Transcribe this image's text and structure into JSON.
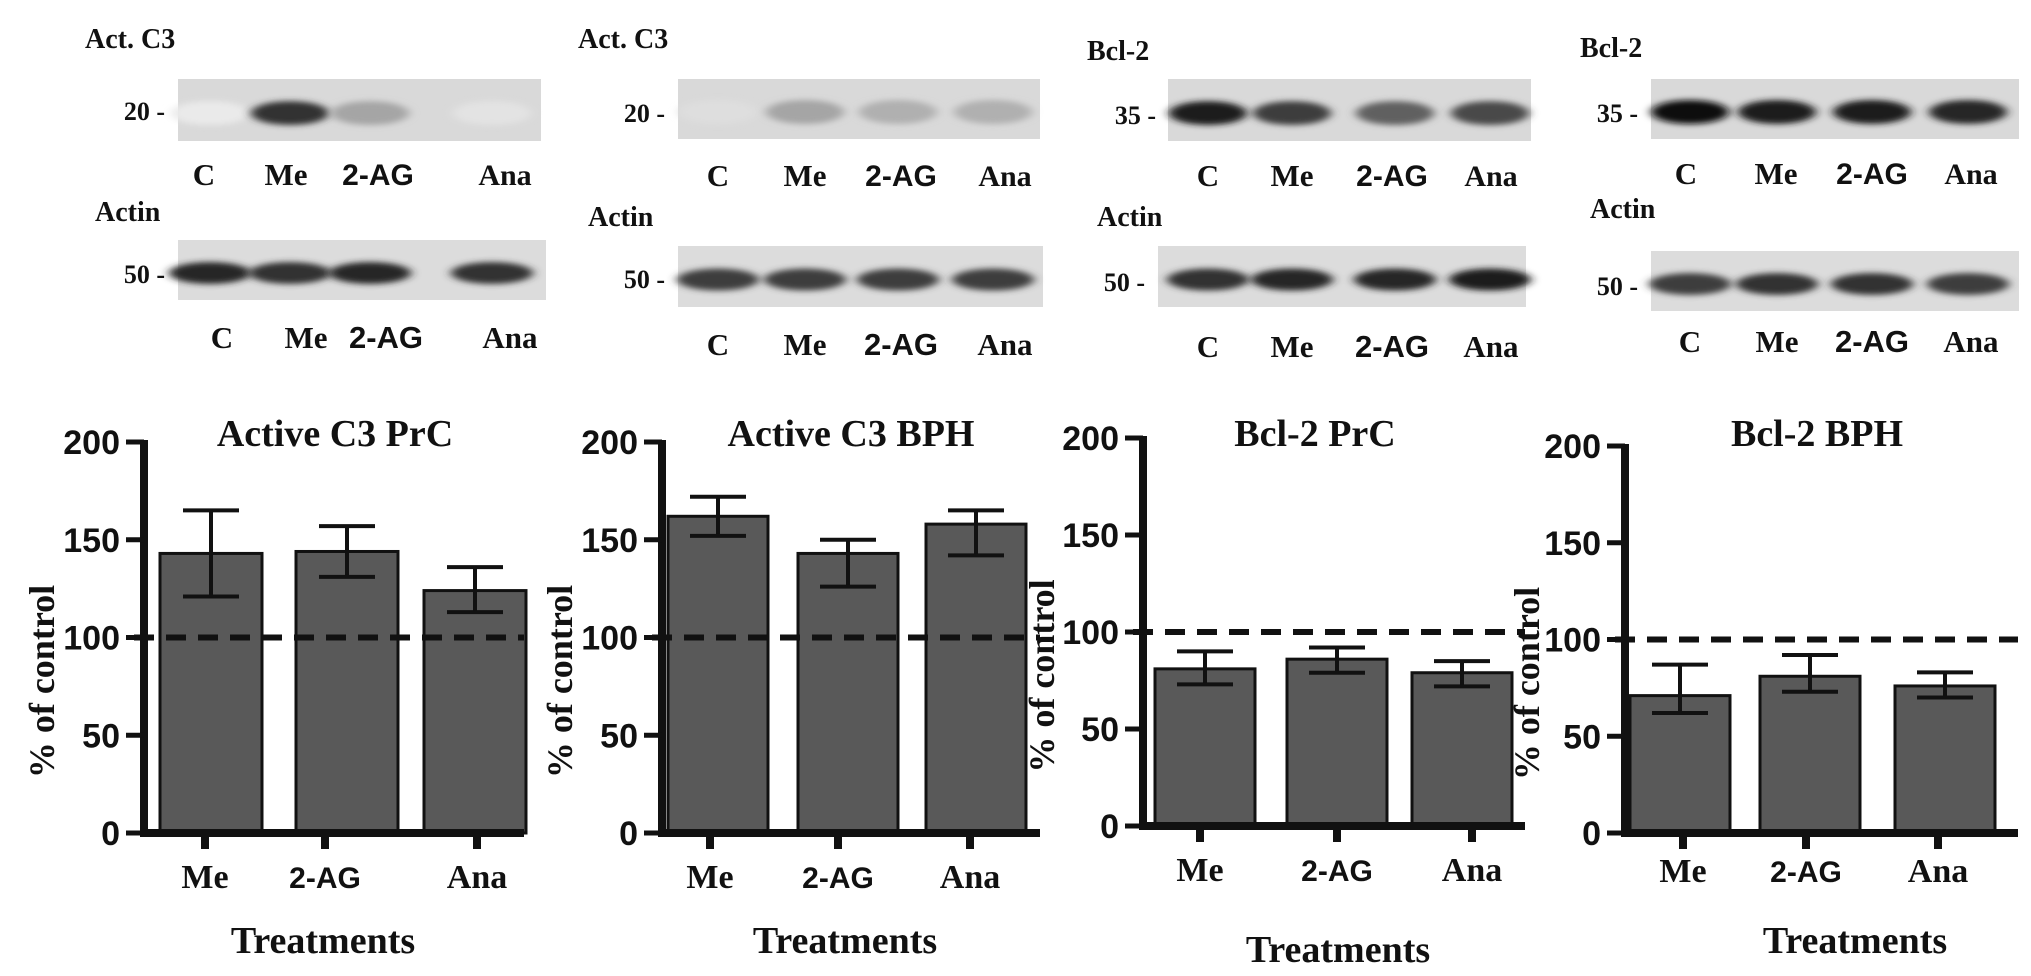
{
  "blots": [
    {
      "protein_label": "Act. C3",
      "protein_marker": "20",
      "protein_lanes": [
        "C",
        "Me",
        "2-AG",
        "Ana"
      ],
      "protein_intensity": [
        0.05,
        0.85,
        0.35,
        0.08
      ],
      "actin_label": "Actin",
      "actin_marker": "50",
      "actin_lanes": [
        "C",
        "Me",
        "2-AG",
        "Ana"
      ],
      "actin_intensity": [
        0.9,
        0.85,
        0.9,
        0.85
      ]
    },
    {
      "protein_label": "Act. C3",
      "protein_marker": "20",
      "protein_lanes": [
        "C",
        "Me",
        "2-AG",
        "Ana"
      ],
      "protein_intensity": [
        0.1,
        0.35,
        0.3,
        0.3
      ],
      "actin_label": "Actin",
      "actin_marker": "50",
      "actin_lanes": [
        "C",
        "Me",
        "2-AG",
        "Ana"
      ],
      "actin_intensity": [
        0.8,
        0.8,
        0.8,
        0.8
      ]
    },
    {
      "protein_label": "Bcl-2",
      "protein_marker": "35",
      "protein_lanes": [
        "C",
        "Me",
        "2-AG",
        "Ana"
      ],
      "protein_intensity": [
        0.95,
        0.8,
        0.65,
        0.75
      ],
      "actin_label": "Actin",
      "actin_marker": "50",
      "actin_lanes": [
        "C",
        "Me",
        "2-AG",
        "Ana"
      ],
      "actin_intensity": [
        0.85,
        0.9,
        0.9,
        0.95
      ]
    },
    {
      "protein_label": "Bcl-2",
      "protein_marker": "35",
      "protein_lanes": [
        "C",
        "Me",
        "2-AG",
        "Ana"
      ],
      "protein_intensity": [
        1.0,
        0.95,
        0.95,
        0.9
      ],
      "actin_label": "Actin",
      "actin_marker": "50",
      "actin_lanes": [
        "C",
        "Me",
        "2-AG",
        "Ana"
      ],
      "actin_intensity": [
        0.8,
        0.85,
        0.85,
        0.8
      ]
    }
  ],
  "chart_data": [
    {
      "type": "bar",
      "title": "Active C3 PrC",
      "xlabel": "Treatments",
      "ylabel": "% of control",
      "categories": [
        "Me",
        "2-AG",
        "Ana"
      ],
      "values": [
        143,
        144,
        124
      ],
      "error_low": [
        121,
        131,
        113
      ],
      "error_high": [
        165,
        157,
        136
      ],
      "ylim": [
        0,
        200
      ],
      "yticks": [
        0,
        50,
        100,
        150,
        200
      ],
      "reference_line": 100,
      "bar_color": "#595959"
    },
    {
      "type": "bar",
      "title": "Active C3 BPH",
      "xlabel": "Treatments",
      "ylabel": "% of control",
      "categories": [
        "Me",
        "2-AG",
        "Ana"
      ],
      "values": [
        162,
        143,
        158
      ],
      "error_low": [
        152,
        126,
        142
      ],
      "error_high": [
        172,
        150,
        165
      ],
      "ylim": [
        0,
        200
      ],
      "yticks": [
        0,
        50,
        100,
        150,
        200
      ],
      "reference_line": 100,
      "bar_color": "#595959"
    },
    {
      "type": "bar",
      "title": "Bcl-2 PrC",
      "xlabel": "Treatments",
      "ylabel": "% of control",
      "categories": [
        "Me",
        "2-AG",
        "Ana"
      ],
      "values": [
        81,
        86,
        79
      ],
      "error_low": [
        73,
        79,
        72
      ],
      "error_high": [
        90,
        92,
        85
      ],
      "ylim": [
        0,
        200
      ],
      "yticks": [
        0,
        50,
        100,
        150,
        200
      ],
      "reference_line": 100,
      "bar_color": "#595959"
    },
    {
      "type": "bar",
      "title": "Bcl-2 BPH",
      "xlabel": "Treatments",
      "ylabel": "% of control",
      "categories": [
        "Me",
        "2-AG",
        "Ana"
      ],
      "values": [
        71,
        81,
        76
      ],
      "error_low": [
        62,
        73,
        70
      ],
      "error_high": [
        87,
        92,
        83
      ],
      "ylim": [
        0,
        200
      ],
      "yticks": [
        0,
        50,
        100,
        150,
        200
      ],
      "reference_line": 100,
      "bar_color": "#595959"
    }
  ]
}
